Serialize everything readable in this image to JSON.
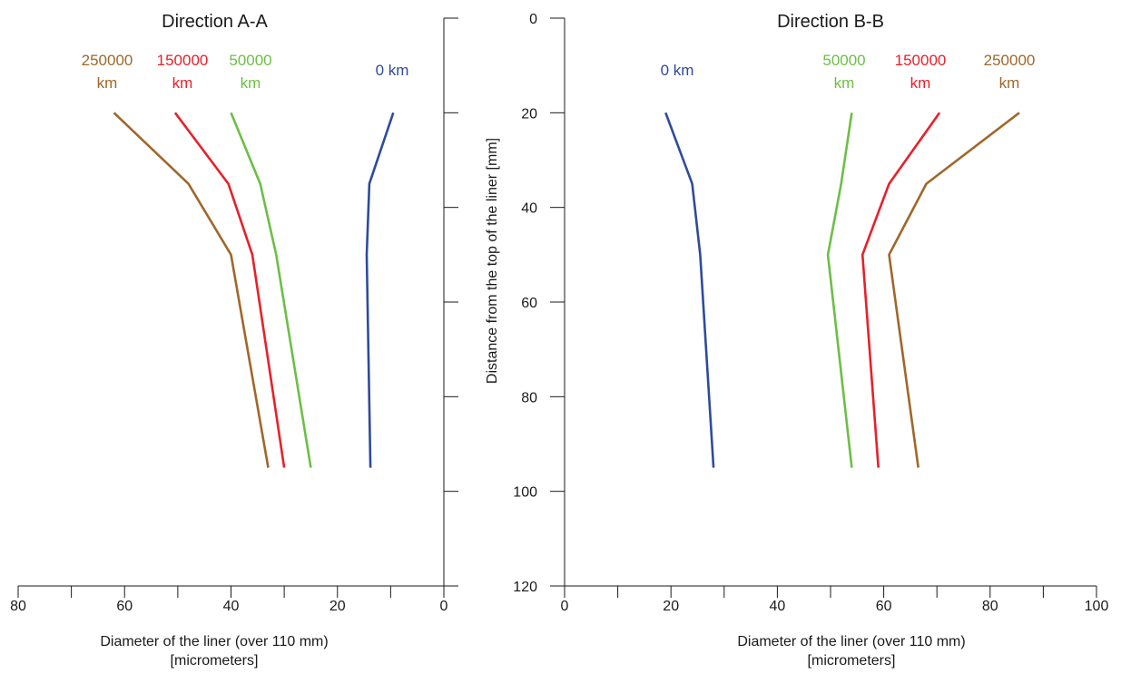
{
  "chart_data": [
    {
      "type": "line",
      "title": "Direction A-A",
      "xlabel": [
        "Diameter of the liner (over 110 mm)",
        "[micrometers]"
      ],
      "ylabel": "",
      "xlim": [
        80,
        0
      ],
      "ylim": [
        0,
        120
      ],
      "x_ticks": [
        80,
        60,
        40,
        20,
        0
      ],
      "grid": false,
      "series": [
        {
          "name": [
            "250000",
            "km"
          ],
          "color": "#a0672a",
          "x": [
            62,
            48,
            40,
            33
          ],
          "y": [
            20,
            35,
            50,
            95
          ]
        },
        {
          "name": [
            "150000",
            "km"
          ],
          "color": "#e8202a",
          "x": [
            50.5,
            40.5,
            36,
            30
          ],
          "y": [
            20,
            35,
            50,
            95
          ]
        },
        {
          "name": [
            "50000",
            "km"
          ],
          "color": "#6cbf45",
          "x": [
            40,
            34.5,
            31.5,
            25
          ],
          "y": [
            20,
            35,
            50,
            95
          ]
        },
        {
          "name": [
            "0 km"
          ],
          "color": "#2e4b9c",
          "x": [
            9.5,
            14,
            14.5,
            13.8
          ],
          "y": [
            20,
            35,
            50,
            95
          ]
        }
      ]
    },
    {
      "type": "line",
      "title": "Direction B-B",
      "xlabel": [
        "Diameter of the liner (over 110 mm)",
        "[micrometers]"
      ],
      "ylabel": "Distance from the top of the liner [mm]",
      "xlim": [
        0,
        100
      ],
      "ylim": [
        0,
        120
      ],
      "x_ticks": [
        0,
        20,
        40,
        60,
        80,
        100
      ],
      "y_ticks": [
        0,
        20,
        40,
        60,
        80,
        100,
        120
      ],
      "grid": false,
      "series": [
        {
          "name": [
            "0 km"
          ],
          "color": "#2e4b9c",
          "x": [
            19,
            24,
            25.5,
            28
          ],
          "y": [
            20,
            35,
            50,
            95
          ]
        },
        {
          "name": [
            "50000",
            "km"
          ],
          "color": "#6cbf45",
          "x": [
            54,
            52,
            49.5,
            54
          ],
          "y": [
            20,
            35,
            50,
            95
          ]
        },
        {
          "name": [
            "150000",
            "km"
          ],
          "color": "#e8202a",
          "x": [
            70.5,
            61,
            56,
            59
          ],
          "y": [
            20,
            35,
            50,
            95
          ]
        },
        {
          "name": [
            "250000",
            "km"
          ],
          "color": "#a0672a",
          "x": [
            85.5,
            68,
            61,
            66.5
          ],
          "y": [
            20,
            35,
            50,
            95
          ]
        }
      ]
    }
  ]
}
